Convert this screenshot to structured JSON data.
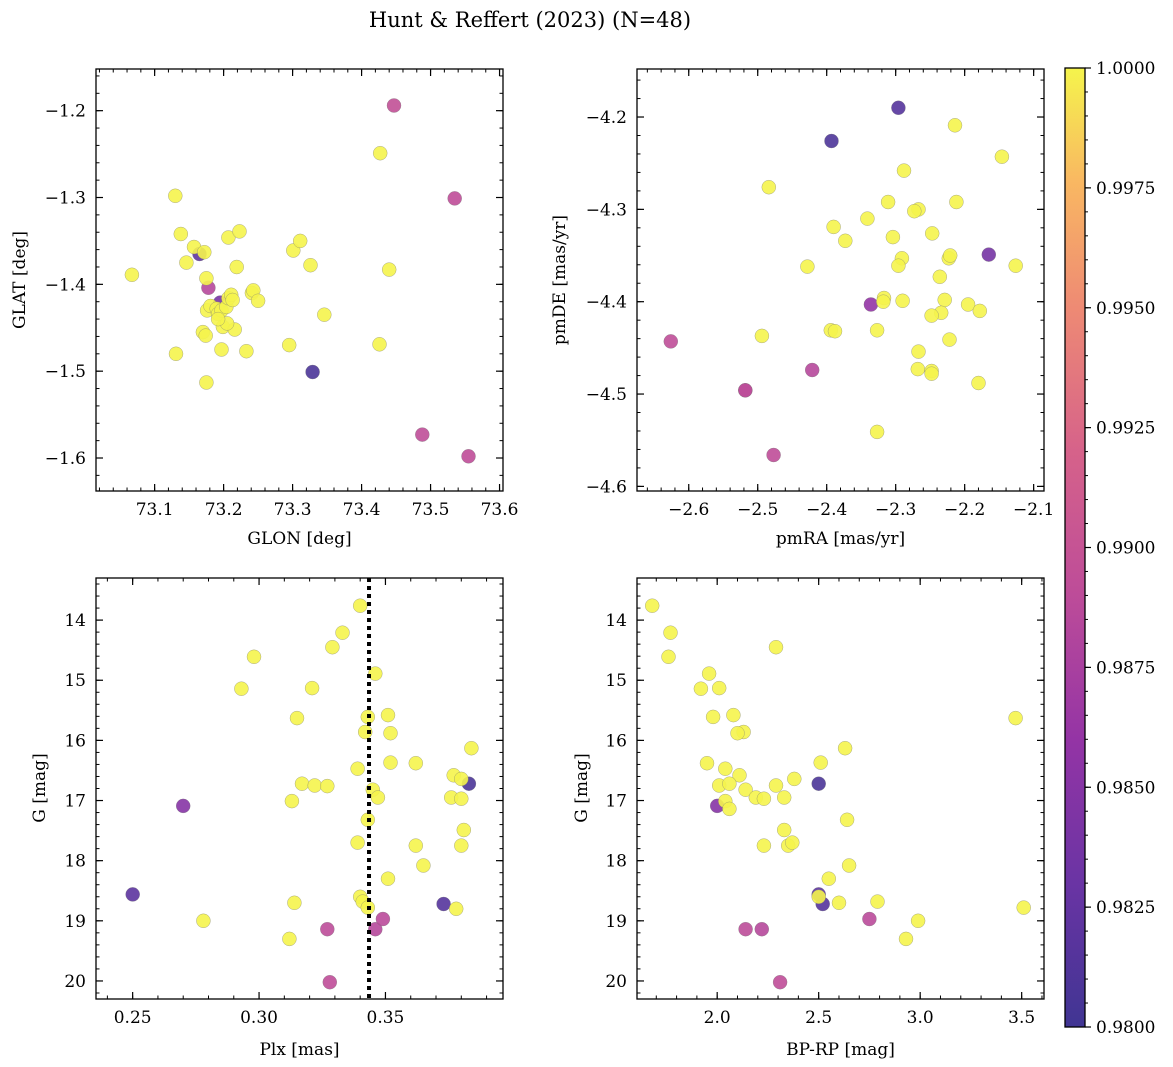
{
  "chart_data": {
    "title": "Hunt & Reffert (2023) (N=48)",
    "type": "scatter",
    "colormap": "plasma",
    "colorbar": {
      "range": [
        0.98,
        1.0
      ],
      "ticks": [
        0.98,
        0.9825,
        0.985,
        0.9875,
        0.99,
        0.9925,
        0.995,
        0.9975,
        1.0
      ],
      "tick_labels": [
        "0.9800",
        "0.9825",
        "0.9850",
        "0.9875",
        "0.9900",
        "0.9925",
        "0.9950",
        "0.9975",
        "1.0000"
      ]
    },
    "panels": [
      {
        "name": "glon-glat",
        "xlabel": "GLON [deg]",
        "ylabel": "GLAT [deg]",
        "xlim": [
          73.015,
          73.605
        ],
        "ylim": [
          -1.638,
          -1.152
        ],
        "y_inverted": false,
        "xticks": [
          73.1,
          73.2,
          73.3,
          73.4,
          73.5,
          73.6
        ],
        "xtick_labels": [
          "73.1",
          "73.2",
          "73.3",
          "73.4",
          "73.5",
          "73.6"
        ],
        "yticks": [
          -1.2,
          -1.3,
          -1.4,
          -1.5,
          -1.6
        ],
        "ytick_labels": [
          "−1.2",
          "−1.3",
          "−1.4",
          "−1.5",
          "−1.6"
        ],
        "vline": null,
        "points": [
          [
            73.067,
            -1.389,
            1.0
          ],
          [
            73.13,
            -1.298,
            1.0
          ],
          [
            73.138,
            -1.342,
            1.0
          ],
          [
            73.146,
            -1.375,
            1.0
          ],
          [
            73.157,
            -1.357,
            1.0
          ],
          [
            73.165,
            -1.365,
            0.9822
          ],
          [
            73.172,
            -1.363,
            1.0
          ],
          [
            73.175,
            -1.393,
            1.0
          ],
          [
            73.178,
            -1.404,
            0.9885
          ],
          [
            73.195,
            -1.421,
            0.984
          ],
          [
            73.17,
            -1.455,
            1.0
          ],
          [
            73.174,
            -1.459,
            1.0
          ],
          [
            73.176,
            -1.43,
            1.0
          ],
          [
            73.181,
            -1.425,
            1.0
          ],
          [
            73.19,
            -1.428,
            1.0
          ],
          [
            73.192,
            -1.434,
            1.0
          ],
          [
            73.197,
            -1.43,
            1.0
          ],
          [
            73.199,
            -1.449,
            1.0
          ],
          [
            73.204,
            -1.426,
            1.0
          ],
          [
            73.207,
            -1.416,
            1.0
          ],
          [
            73.211,
            -1.412,
            1.0
          ],
          [
            73.216,
            -1.452,
            1.0
          ],
          [
            73.207,
            -1.346,
            1.0
          ],
          [
            73.219,
            -1.38,
            1.0
          ],
          [
            73.223,
            -1.339,
            1.0
          ],
          [
            73.197,
            -1.475,
            1.0
          ],
          [
            73.233,
            -1.477,
            1.0
          ],
          [
            73.241,
            -1.41,
            1.0
          ],
          [
            73.243,
            -1.407,
            1.0
          ],
          [
            73.25,
            -1.419,
            1.0
          ],
          [
            73.295,
            -1.47,
            1.0
          ],
          [
            73.301,
            -1.361,
            1.0
          ],
          [
            73.311,
            -1.35,
            1.0
          ],
          [
            73.326,
            -1.378,
            1.0
          ],
          [
            73.346,
            -1.435,
            1.0
          ],
          [
            73.329,
            -1.501,
            0.9808
          ],
          [
            73.427,
            -1.249,
            1.0
          ],
          [
            73.44,
            -1.383,
            1.0
          ],
          [
            73.426,
            -1.469,
            1.0
          ],
          [
            73.131,
            -1.48,
            1.0
          ],
          [
            73.175,
            -1.513,
            1.0
          ],
          [
            73.447,
            -1.194,
            0.9895
          ],
          [
            73.535,
            -1.301,
            0.9892
          ],
          [
            73.488,
            -1.573,
            0.9893
          ],
          [
            73.555,
            -1.598,
            0.9892
          ],
          [
            73.205,
            -1.445,
            1.0
          ],
          [
            73.213,
            -1.418,
            1.0
          ],
          [
            73.192,
            -1.44,
            1.0
          ]
        ]
      },
      {
        "name": "pmra-pmde",
        "xlabel": "pmRA [mas/yr]",
        "ylabel": "pmDE [mas/yr]",
        "xlim": [
          -2.675,
          -2.085
        ],
        "ylim": [
          -4.605,
          -4.148
        ],
        "y_inverted": false,
        "xticks": [
          -2.6,
          -2.5,
          -2.4,
          -2.3,
          -2.2,
          -2.1
        ],
        "xtick_labels": [
          "−2.6",
          "−2.5",
          "−2.4",
          "−2.3",
          "−2.2",
          "−2.1"
        ],
        "yticks": [
          -4.2,
          -4.3,
          -4.4,
          -4.5,
          -4.6
        ],
        "ytick_labels": [
          "−4.2",
          "−4.3",
          "−4.4",
          "−4.5",
          "−4.6"
        ],
        "vline": null,
        "points": [
          [
            -2.296,
            -4.19,
            0.9815
          ],
          [
            -2.393,
            -4.226,
            0.981
          ],
          [
            -2.214,
            -4.209,
            1.0
          ],
          [
            -2.146,
            -4.243,
            1.0
          ],
          [
            -2.288,
            -4.258,
            1.0
          ],
          [
            -2.484,
            -4.276,
            1.0
          ],
          [
            -2.311,
            -4.292,
            1.0
          ],
          [
            -2.267,
            -4.3,
            1.0
          ],
          [
            -2.273,
            -4.302,
            1.0
          ],
          [
            -2.212,
            -4.292,
            1.0
          ],
          [
            -2.341,
            -4.31,
            1.0
          ],
          [
            -2.39,
            -4.319,
            1.0
          ],
          [
            -2.304,
            -4.33,
            1.0
          ],
          [
            -2.247,
            -4.326,
            1.0
          ],
          [
            -2.373,
            -4.334,
            1.0
          ],
          [
            -2.291,
            -4.353,
            1.0
          ],
          [
            -2.296,
            -4.361,
            1.0
          ],
          [
            -2.223,
            -4.353,
            1.0
          ],
          [
            -2.221,
            -4.35,
            1.0
          ],
          [
            -2.165,
            -4.349,
            0.9838
          ],
          [
            -2.126,
            -4.361,
            1.0
          ],
          [
            -2.428,
            -4.362,
            1.0
          ],
          [
            -2.236,
            -4.373,
            1.0
          ],
          [
            -2.317,
            -4.396,
            1.0
          ],
          [
            -2.318,
            -4.4,
            1.0
          ],
          [
            -2.29,
            -4.399,
            1.0
          ],
          [
            -2.229,
            -4.398,
            1.0
          ],
          [
            -2.336,
            -4.403,
            0.986
          ],
          [
            -2.195,
            -4.403,
            1.0
          ],
          [
            -2.178,
            -4.41,
            1.0
          ],
          [
            -2.234,
            -4.412,
            1.0
          ],
          [
            -2.248,
            -4.415,
            1.0
          ],
          [
            -2.222,
            -4.441,
            1.0
          ],
          [
            -2.394,
            -4.431,
            1.0
          ],
          [
            -2.388,
            -4.432,
            1.0
          ],
          [
            -2.327,
            -4.431,
            1.0
          ],
          [
            -2.494,
            -4.437,
            1.0
          ],
          [
            -2.626,
            -4.443,
            0.9893
          ],
          [
            -2.267,
            -4.454,
            1.0
          ],
          [
            -2.268,
            -4.473,
            1.0
          ],
          [
            -2.248,
            -4.475,
            1.0
          ],
          [
            -2.248,
            -4.478,
            1.0
          ],
          [
            -2.421,
            -4.474,
            0.9885
          ],
          [
            -2.18,
            -4.488,
            1.0
          ],
          [
            -2.518,
            -4.496,
            0.989
          ],
          [
            -2.518,
            -4.496,
            0.9888
          ],
          [
            -2.327,
            -4.541,
            1.0
          ],
          [
            -2.477,
            -4.566,
            0.9892
          ]
        ]
      },
      {
        "name": "plx-g",
        "xlabel": "Plx [mas]",
        "ylabel": "G [mag]",
        "xlim": [
          0.2355,
          0.3965
        ],
        "ylim": [
          20.3,
          13.3
        ],
        "y_inverted": true,
        "xticks": [
          0.25,
          0.3,
          0.35
        ],
        "xtick_labels": [
          "0.25",
          "0.30",
          "0.35"
        ],
        "yticks": [
          14,
          15,
          16,
          17,
          18,
          19,
          20
        ],
        "ytick_labels": [
          "14",
          "15",
          "16",
          "17",
          "18",
          "19",
          "20"
        ],
        "vline": 0.3435,
        "points": [
          [
            0.34,
            13.76,
            1.0
          ],
          [
            0.333,
            14.21,
            1.0
          ],
          [
            0.298,
            14.61,
            1.0
          ],
          [
            0.329,
            14.45,
            1.0
          ],
          [
            0.346,
            14.89,
            1.0
          ],
          [
            0.293,
            15.14,
            1.0
          ],
          [
            0.321,
            15.13,
            1.0
          ],
          [
            0.315,
            15.63,
            1.0
          ],
          [
            0.343,
            15.61,
            1.0
          ],
          [
            0.351,
            15.58,
            1.0
          ],
          [
            0.342,
            15.86,
            1.0
          ],
          [
            0.352,
            15.88,
            1.0
          ],
          [
            0.384,
            16.13,
            1.0
          ],
          [
            0.339,
            16.47,
            1.0
          ],
          [
            0.362,
            16.38,
            1.0
          ],
          [
            0.352,
            16.37,
            1.0
          ],
          [
            0.317,
            16.72,
            1.0
          ],
          [
            0.322,
            16.75,
            1.0
          ],
          [
            0.327,
            16.76,
            1.0
          ],
          [
            0.345,
            16.82,
            1.0
          ],
          [
            0.347,
            16.95,
            1.0
          ],
          [
            0.377,
            16.58,
            1.0
          ],
          [
            0.38,
            16.64,
            1.0
          ],
          [
            0.383,
            16.72,
            0.9808
          ],
          [
            0.313,
            17.01,
            1.0
          ],
          [
            0.376,
            16.95,
            1.0
          ],
          [
            0.38,
            16.97,
            1.0
          ],
          [
            0.343,
            17.32,
            1.0
          ],
          [
            0.27,
            17.09,
            0.985
          ],
          [
            0.381,
            17.49,
            1.0
          ],
          [
            0.339,
            17.7,
            1.0
          ],
          [
            0.38,
            17.75,
            1.0
          ],
          [
            0.362,
            17.75,
            1.0
          ],
          [
            0.365,
            18.08,
            1.0
          ],
          [
            0.351,
            18.3,
            1.0
          ],
          [
            0.378,
            18.8,
            1.0
          ],
          [
            0.34,
            18.6,
            1.0
          ],
          [
            0.341,
            18.68,
            1.0
          ],
          [
            0.314,
            18.7,
            1.0
          ],
          [
            0.343,
            18.78,
            1.0
          ],
          [
            0.373,
            18.72,
            0.9815
          ],
          [
            0.25,
            18.56,
            0.982
          ],
          [
            0.278,
            19.0,
            1.0
          ],
          [
            0.349,
            18.97,
            0.9888
          ],
          [
            0.346,
            19.14,
            0.9885
          ],
          [
            0.327,
            19.14,
            0.989
          ],
          [
            0.312,
            19.3,
            1.0
          ],
          [
            0.328,
            20.02,
            0.9892
          ]
        ]
      },
      {
        "name": "bprp-g",
        "xlabel": "BP-RP [mag]",
        "ylabel": "G [mag]",
        "xlim": [
          1.605,
          3.61
        ],
        "ylim": [
          20.3,
          13.3
        ],
        "y_inverted": true,
        "xticks": [
          2.0,
          2.5,
          3.0,
          3.5
        ],
        "xtick_labels": [
          "2.0",
          "2.5",
          "3.0",
          "3.5"
        ],
        "yticks": [
          14,
          15,
          16,
          17,
          18,
          19,
          20
        ],
        "ytick_labels": [
          "14",
          "15",
          "16",
          "17",
          "18",
          "19",
          "20"
        ],
        "vline": null,
        "points": [
          [
            1.68,
            13.76,
            1.0
          ],
          [
            1.77,
            14.21,
            1.0
          ],
          [
            1.76,
            14.61,
            1.0
          ],
          [
            2.29,
            14.45,
            1.0
          ],
          [
            1.96,
            14.89,
            1.0
          ],
          [
            1.92,
            15.14,
            1.0
          ],
          [
            2.01,
            15.13,
            1.0
          ],
          [
            1.98,
            15.61,
            1.0
          ],
          [
            2.08,
            15.58,
            1.0
          ],
          [
            3.47,
            15.63,
            1.0
          ],
          [
            2.13,
            15.86,
            1.0
          ],
          [
            2.1,
            15.88,
            1.0
          ],
          [
            2.63,
            16.13,
            1.0
          ],
          [
            1.95,
            16.38,
            1.0
          ],
          [
            2.51,
            16.37,
            1.0
          ],
          [
            2.04,
            16.47,
            1.0
          ],
          [
            2.11,
            16.58,
            1.0
          ],
          [
            2.38,
            16.64,
            1.0
          ],
          [
            2.5,
            16.72,
            0.9808
          ],
          [
            2.01,
            16.75,
            1.0
          ],
          [
            2.06,
            16.72,
            1.0
          ],
          [
            2.29,
            16.75,
            1.0
          ],
          [
            2.14,
            16.82,
            1.0
          ],
          [
            2.04,
            17.01,
            1.0
          ],
          [
            2.19,
            16.95,
            1.0
          ],
          [
            2.23,
            16.97,
            1.0
          ],
          [
            2.33,
            16.95,
            1.0
          ],
          [
            2.06,
            17.14,
            1.0
          ],
          [
            2.0,
            17.09,
            0.985
          ],
          [
            2.64,
            17.32,
            1.0
          ],
          [
            2.33,
            17.49,
            1.0
          ],
          [
            2.35,
            17.75,
            1.0
          ],
          [
            2.37,
            17.7,
            1.0
          ],
          [
            2.23,
            17.75,
            1.0
          ],
          [
            2.65,
            18.08,
            1.0
          ],
          [
            2.55,
            18.3,
            1.0
          ],
          [
            2.5,
            18.56,
            0.982
          ],
          [
            2.52,
            18.72,
            0.9815
          ],
          [
            2.5,
            18.6,
            1.0
          ],
          [
            2.6,
            18.7,
            1.0
          ],
          [
            2.79,
            18.68,
            1.0
          ],
          [
            3.51,
            18.78,
            1.0
          ],
          [
            2.75,
            18.97,
            0.9888
          ],
          [
            2.99,
            19.0,
            1.0
          ],
          [
            2.14,
            19.14,
            0.989
          ],
          [
            2.22,
            19.14,
            0.9885
          ],
          [
            2.93,
            19.3,
            1.0
          ],
          [
            2.31,
            20.02,
            0.9892
          ]
        ]
      }
    ]
  }
}
